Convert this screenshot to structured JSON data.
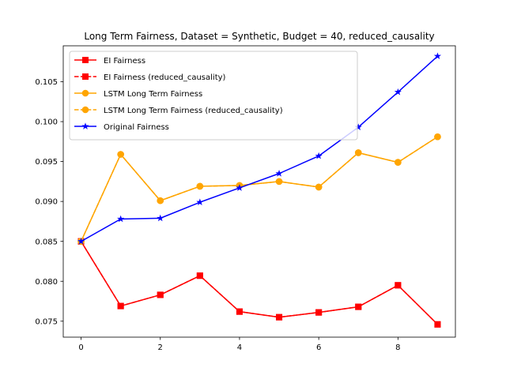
{
  "chart_data": {
    "type": "line",
    "title": "Long Term Fairness, Dataset = Synthetic, Budget = 40, reduced_causality",
    "xlabel": "",
    "ylabel": "",
    "xlim": [
      -0.45,
      9.45
    ],
    "ylim": [
      0.073,
      0.1095
    ],
    "x_ticks": [
      0,
      2,
      4,
      6,
      8
    ],
    "y_ticks": [
      0.075,
      0.08,
      0.085,
      0.09,
      0.095,
      0.1,
      0.105
    ],
    "legend_position": "upper-left",
    "grid": false,
    "x": [
      0,
      1,
      2,
      3,
      4,
      5,
      6,
      7,
      8,
      9
    ],
    "series": [
      {
        "name": "EI Fairness",
        "color": "#ff0000",
        "marker": "square",
        "linestyle": "solid",
        "values": [
          0.085,
          0.0769,
          0.0783,
          0.0807,
          0.0762,
          0.0755,
          0.0761,
          0.0768,
          0.0795,
          0.0746
        ]
      },
      {
        "name": "EI Fairness (reduced_causality)",
        "color": "#ff0000",
        "marker": "square",
        "linestyle": "dashed",
        "values": [
          0.085,
          0.0769,
          0.0783,
          0.0807,
          0.0762,
          0.0755,
          0.0761,
          0.0768,
          0.0795,
          0.0746
        ]
      },
      {
        "name": "LSTM Long Term Fairness",
        "color": "#ffa500",
        "marker": "circle",
        "linestyle": "solid",
        "values": [
          0.085,
          0.0959,
          0.0901,
          0.0919,
          0.092,
          0.0925,
          0.0918,
          0.0961,
          0.0949,
          0.0981
        ]
      },
      {
        "name": "LSTM Long Term Fairness (reduced_causality)",
        "color": "#ffa500",
        "marker": "circle",
        "linestyle": "dashed",
        "values": [
          0.085,
          0.0959,
          0.0901,
          0.0919,
          0.092,
          0.0925,
          0.0918,
          0.0961,
          0.0949,
          0.0981
        ]
      },
      {
        "name": "Original Fairness",
        "color": "#0000ff",
        "marker": "star",
        "linestyle": "solid",
        "values": [
          0.085,
          0.0878,
          0.0879,
          0.0899,
          0.0917,
          0.0935,
          0.0957,
          0.0993,
          0.1037,
          0.1082
        ]
      }
    ]
  }
}
